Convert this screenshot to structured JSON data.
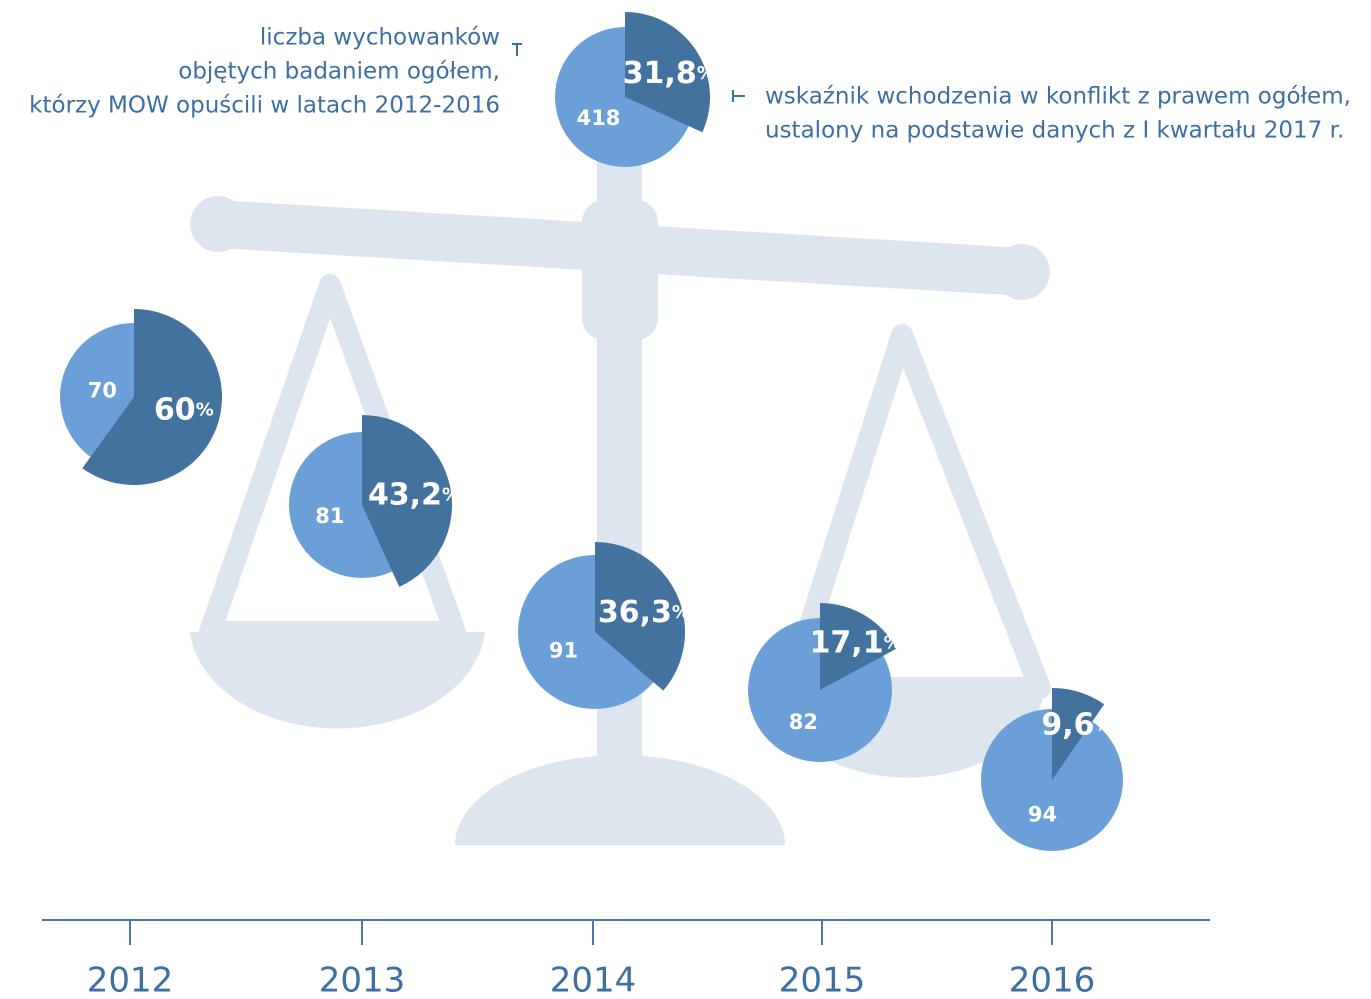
{
  "chart_data": {
    "type": "pie",
    "annotations": [
      [
        "liczba wychowanków",
        "objętych badaniem ogółem,",
        "którzy MOW opuścili w latach 2012-2016"
      ],
      [
        "wskaźnik wchodzenia w konflikt z prawem ogółem,",
        "ustalony na podstawie danych z I kwartału 2017 r."
      ]
    ],
    "categories": [
      "2012",
      "2013",
      "2014",
      "2015",
      "2016"
    ],
    "counts": [
      70,
      81,
      91,
      82,
      94
    ],
    "values": [
      60,
      43.2,
      36.3,
      17.1,
      9.6
    ],
    "value_labels": [
      "60",
      "43,2",
      "36,3",
      "17,1",
      "9,6"
    ],
    "unit": "%",
    "total": {
      "count": 418,
      "value": 31.8,
      "value_label": "31,8"
    },
    "colors": {
      "count": "#6a9fd8",
      "share": "#44729f"
    }
  }
}
